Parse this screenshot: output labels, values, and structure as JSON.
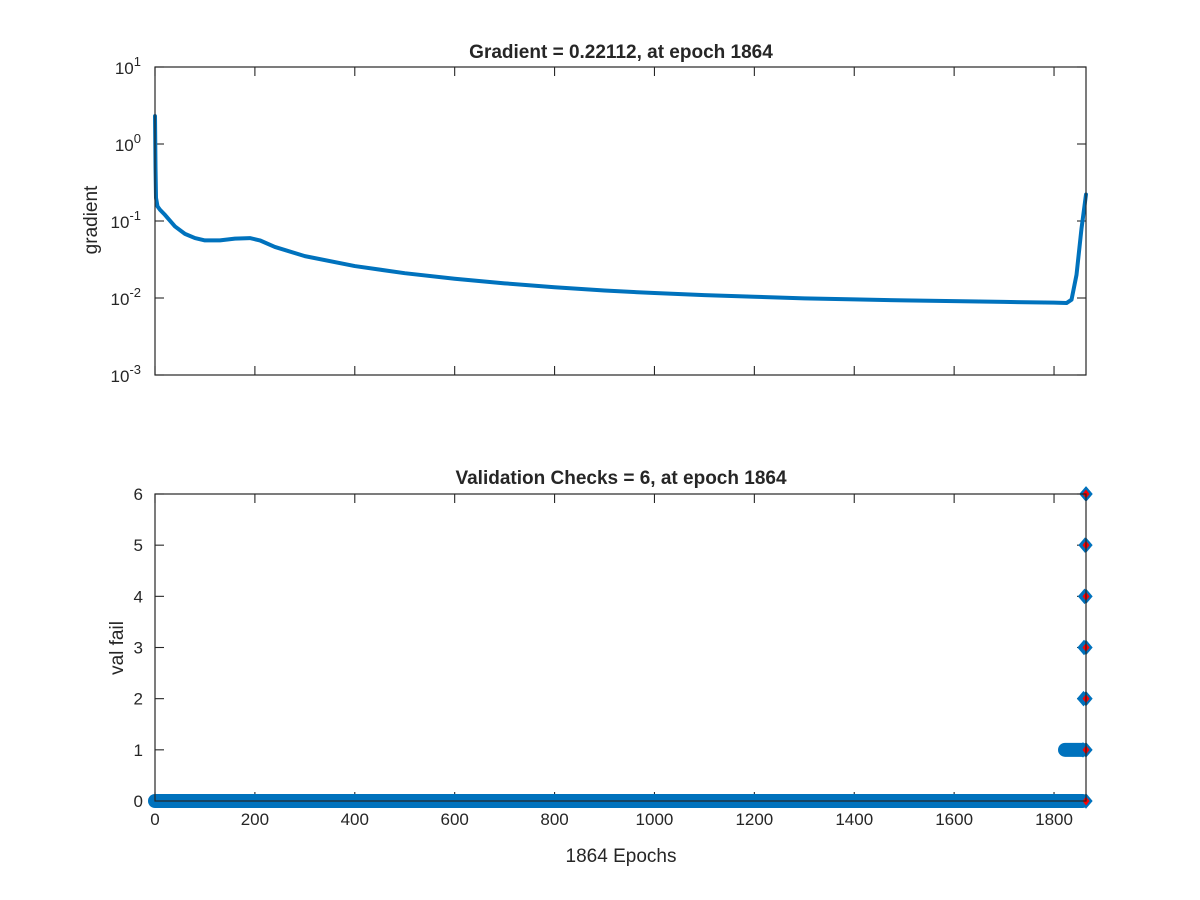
{
  "chart_data": [
    {
      "type": "line",
      "title": "Gradient = 0.22112, at epoch 1864",
      "ylabel": "gradient",
      "xlabel": "",
      "yscale": "log",
      "xlim": [
        0,
        1864
      ],
      "ylim": [
        0.001,
        10
      ],
      "yticks": [
        {
          "base": "10",
          "exp": "1"
        },
        {
          "base": "10",
          "exp": "0"
        },
        {
          "base": "10",
          "exp": "-1"
        },
        {
          "base": "10",
          "exp": "-2"
        },
        {
          "base": "10",
          "exp": "-3"
        }
      ],
      "xticks": [
        0,
        200,
        400,
        600,
        800,
        1000,
        1200,
        1400,
        1600,
        1800
      ],
      "show_xtick_labels": false,
      "grid": false,
      "line_color": "#0072BD",
      "series": [
        {
          "x": [
            0,
            1,
            2,
            5,
            10,
            20,
            40,
            60,
            80,
            100,
            130,
            160,
            190,
            210,
            240,
            300,
            400,
            500,
            600,
            700,
            800,
            900,
            1000,
            1100,
            1200,
            1300,
            1400,
            1500,
            1600,
            1700,
            1800,
            1825,
            1835,
            1845,
            1855,
            1864
          ],
          "y": [
            2.3,
            0.5,
            0.2,
            0.155,
            0.14,
            0.12,
            0.085,
            0.068,
            0.06,
            0.056,
            0.056,
            0.059,
            0.06,
            0.056,
            0.046,
            0.035,
            0.026,
            0.021,
            0.0178,
            0.0155,
            0.0138,
            0.0125,
            0.0116,
            0.0109,
            0.0104,
            0.0099,
            0.0096,
            0.0093,
            0.0091,
            0.0089,
            0.0087,
            0.0086,
            0.0095,
            0.02,
            0.08,
            0.22112
          ]
        }
      ]
    },
    {
      "type": "scatter",
      "title": "Validation Checks = 6, at epoch 1864",
      "ylabel": "val fail",
      "xlabel": "1864 Epochs",
      "xlim": [
        0,
        1864
      ],
      "ylim": [
        0,
        6
      ],
      "yticks": [
        0,
        1,
        2,
        3,
        4,
        5,
        6
      ],
      "xticks": [
        0,
        200,
        400,
        600,
        800,
        1000,
        1200,
        1400,
        1600,
        1800
      ],
      "grid": false,
      "marker_color": "#0072BD",
      "highlight_color": "#FF0000",
      "series": [
        {
          "x_start": 0,
          "x_end": 1857,
          "y": 0
        },
        {
          "x_start": 1858,
          "x_end": 1858,
          "y": 1
        },
        {
          "x_start": 1859,
          "x_end": 1859,
          "y": 2
        },
        {
          "x_start": 1860,
          "x_end": 1860,
          "y": 3
        },
        {
          "x_start": 1861,
          "x_end": 1861,
          "y": 4
        },
        {
          "x_start": 1862,
          "x_end": 1862,
          "y": 5
        },
        {
          "x_start": 1864,
          "x_end": 1864,
          "y": 6
        }
      ],
      "pre_band": {
        "x_start": 1822,
        "x_end": 1857,
        "y": 1
      },
      "highlight_points": [
        {
          "x": 1864,
          "y": 0
        },
        {
          "x": 1864,
          "y": 1
        },
        {
          "x": 1864,
          "y": 2
        },
        {
          "x": 1864,
          "y": 3
        },
        {
          "x": 1864,
          "y": 4
        },
        {
          "x": 1864,
          "y": 5
        },
        {
          "x": 1864,
          "y": 6
        }
      ]
    }
  ]
}
